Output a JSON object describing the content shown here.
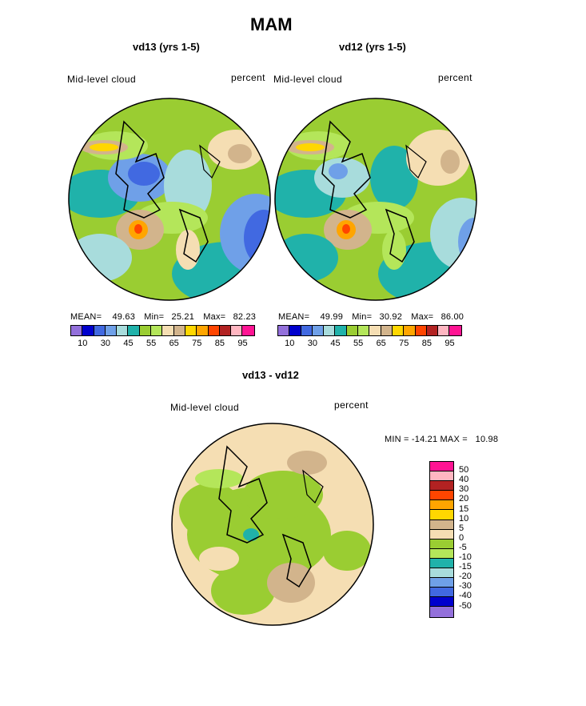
{
  "chart_data": {
    "type": "heatmap",
    "title": "MAM",
    "panels": [
      {
        "name": "vd13 (yrs 1-5)",
        "variable": "Mid-level cloud",
        "units": "percent",
        "mean_label": "MEAN=",
        "mean": "49.63",
        "min_label": "Min=",
        "min": "25.21",
        "max_label": "Max=",
        "max": "82.23"
      },
      {
        "name": "vd12 (yrs 1-5)",
        "variable": "Mid-level cloud",
        "units": "percent",
        "mean_label": "MEAN=",
        "mean": "49.99",
        "min_label": "Min=",
        "min": "30.92",
        "max_label": "Max=",
        "max": "86.00"
      },
      {
        "name": "vd13 - vd12",
        "variable": "Mid-level cloud",
        "units": "percent",
        "minmax_text": "MIN = -14.21 MAX =   10.98"
      }
    ],
    "colorbar_levels": [
      "10",
      "30",
      "45",
      "55",
      "65",
      "75",
      "85",
      "95"
    ],
    "colorbar_colors": [
      "#9370DB",
      "#0000CD",
      "#4169E1",
      "#6FA0E8",
      "#A8DCDC",
      "#20B2AA",
      "#9ACD32",
      "#B4E65A",
      "#F5DEB3",
      "#D2B48C",
      "#FFD700",
      "#FFA500",
      "#FF4500",
      "#B22222",
      "#FFB6C1",
      "#FF1493"
    ],
    "diff_levels": [
      "50",
      "40",
      "30",
      "20",
      "15",
      "10",
      "5",
      "0",
      "-5",
      "-10",
      "-15",
      "-20",
      "-30",
      "-40",
      "-50"
    ],
    "diff_colors": [
      "#FF1493",
      "#FFB6C1",
      "#B22222",
      "#FF4500",
      "#FFA500",
      "#FFD700",
      "#D2B48C",
      "#F5DEB3",
      "#9ACD32",
      "#B4E65A",
      "#20B2AA",
      "#A8DCDC",
      "#6FA0E8",
      "#4169E1",
      "#0000CD",
      "#9370DB"
    ]
  }
}
